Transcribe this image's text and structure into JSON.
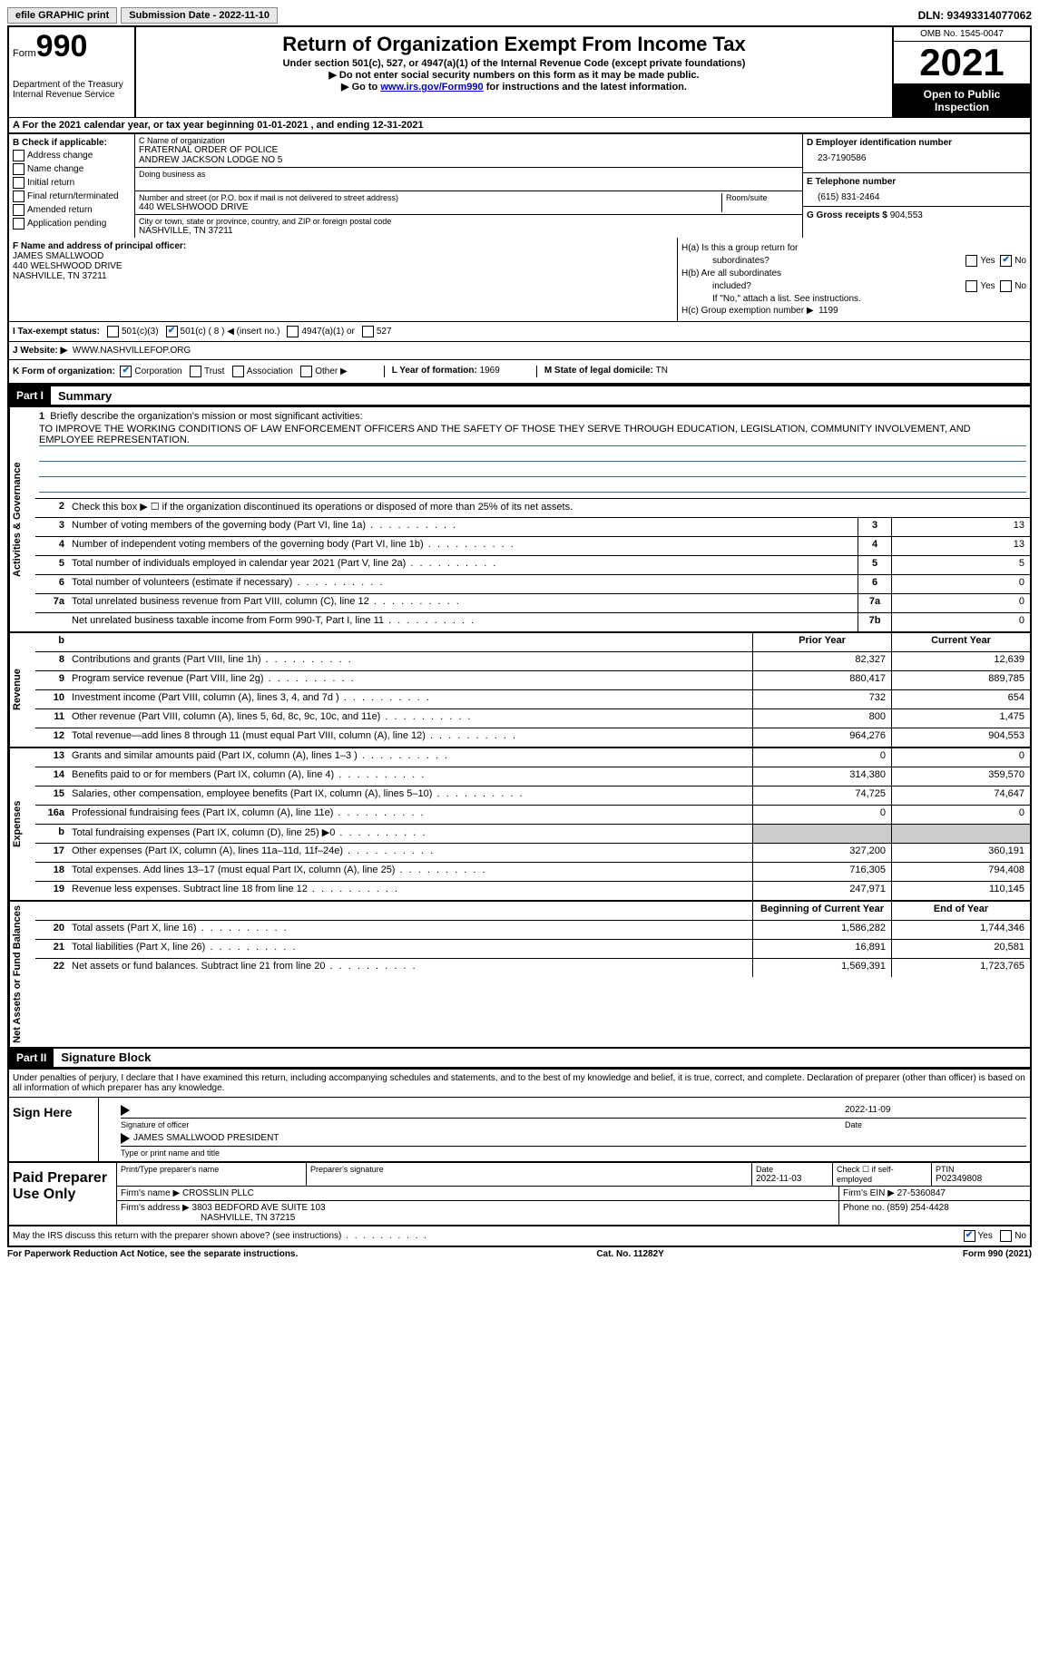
{
  "topbar": {
    "efile": "efile GRAPHIC print",
    "submission": "Submission Date - 2022-11-10",
    "dln": "DLN: 93493314077062"
  },
  "header": {
    "form_label": "Form",
    "form_number": "990",
    "dept": "Department of the Treasury",
    "irs": "Internal Revenue Service",
    "title": "Return of Organization Exempt From Income Tax",
    "sub1": "Under section 501(c), 527, or 4947(a)(1) of the Internal Revenue Code (except private foundations)",
    "sub2": "▶ Do not enter social security numbers on this form as it may be made public.",
    "sub3_pre": "▶ Go to ",
    "sub3_link": "www.irs.gov/Form990",
    "sub3_post": " for instructions and the latest information.",
    "omb": "OMB No. 1545-0047",
    "year": "2021",
    "open": "Open to Public Inspection"
  },
  "sectionA": "A  For the 2021 calendar year, or tax year beginning 01-01-2021    , and ending 12-31-2021",
  "colB": {
    "label": "B Check if applicable:",
    "addr": "Address change",
    "name": "Name change",
    "init": "Initial return",
    "final": "Final return/terminated",
    "amend": "Amended return",
    "app": "Application pending"
  },
  "colC": {
    "name_label": "C Name of organization",
    "name1": "FRATERNAL ORDER OF POLICE",
    "name2": "ANDREW JACKSON LODGE NO 5",
    "dba_label": "Doing business as",
    "addr_label": "Number and street (or P.O. box if mail is not delivered to street address)",
    "addr": "440 WELSHWOOD DRIVE",
    "room_label": "Room/suite",
    "city_label": "City or town, state or province, country, and ZIP or foreign postal code",
    "city": "NASHVILLE, TN  37211"
  },
  "colD": {
    "d_label": "D Employer identification number",
    "d_val": "23-7190586",
    "e_label": "E Telephone number",
    "e_val": "(615) 831-2464",
    "g_label": "G Gross receipts $ ",
    "g_val": "904,553"
  },
  "sectionF": {
    "label": "F  Name and address of principal officer:",
    "name": "JAMES SMALLWOOD",
    "addr1": "440 WELSHWOOD DRIVE",
    "addr2": "NASHVILLE, TN  37211"
  },
  "sectionH": {
    "ha1": "H(a)  Is this a group return for",
    "ha2": "subordinates?",
    "hb1": "H(b)  Are all subordinates",
    "hb2": "included?",
    "hb_note": "If \"No,\" attach a list. See instructions.",
    "hc": "H(c)  Group exemption number ▶",
    "hc_val": "1199",
    "yes": "Yes",
    "no": "No"
  },
  "rowI": {
    "label": "I   Tax-exempt status:",
    "c3": "501(c)(3)",
    "c": "501(c) ( 8 ) ◀ (insert no.)",
    "a1": "4947(a)(1) or",
    "s527": "527"
  },
  "rowJ": {
    "label": "J   Website: ▶",
    "val": "WWW.NASHVILLEFOP.ORG"
  },
  "rowK": {
    "label": "K Form of organization:",
    "corp": "Corporation",
    "trust": "Trust",
    "assoc": "Association",
    "other": "Other ▶",
    "l_label": "L Year of formation: ",
    "l_val": "1969",
    "m_label": "M State of legal domicile: ",
    "m_val": "TN"
  },
  "part1": {
    "header": "Part I",
    "title": "Summary"
  },
  "summary": {
    "line1_label": "Briefly describe the organization's mission or most significant activities:",
    "line1_text": "TO IMPROVE THE WORKING CONDITIONS OF LAW ENFORCEMENT OFFICERS AND THE SAFETY OF THOSE THEY SERVE THROUGH EDUCATION, LEGISLATION, COMMUNITY INVOLVEMENT, AND EMPLOYEE REPRESENTATION.",
    "line2": "Check this box ▶ ☐  if the organization discontinued its operations or disposed of more than 25% of its net assets.",
    "sec1_tab": "Activities & Governance",
    "sec2_tab": "Revenue",
    "sec3_tab": "Expenses",
    "sec4_tab": "Net Assets or Fund Balances",
    "prior": "Prior Year",
    "current": "Current Year",
    "begin": "Beginning of Current Year",
    "end": "End of Year",
    "rows_gov": [
      {
        "n": "3",
        "l": "Number of voting members of the governing body (Part VI, line 1a)",
        "box": "3",
        "v": "13"
      },
      {
        "n": "4",
        "l": "Number of independent voting members of the governing body (Part VI, line 1b)",
        "box": "4",
        "v": "13"
      },
      {
        "n": "5",
        "l": "Total number of individuals employed in calendar year 2021 (Part V, line 2a)",
        "box": "5",
        "v": "5"
      },
      {
        "n": "6",
        "l": "Total number of volunteers (estimate if necessary)",
        "box": "6",
        "v": "0"
      },
      {
        "n": "7a",
        "l": "Total unrelated business revenue from Part VIII, column (C), line 12",
        "box": "7a",
        "v": "0"
      },
      {
        "n": "",
        "l": "Net unrelated business taxable income from Form 990-T, Part I, line 11",
        "box": "7b",
        "v": "0"
      }
    ],
    "rows_rev": [
      {
        "n": "8",
        "l": "Contributions and grants (Part VIII, line 1h)",
        "p": "82,327",
        "c": "12,639"
      },
      {
        "n": "9",
        "l": "Program service revenue (Part VIII, line 2g)",
        "p": "880,417",
        "c": "889,785"
      },
      {
        "n": "10",
        "l": "Investment income (Part VIII, column (A), lines 3, 4, and 7d )",
        "p": "732",
        "c": "654"
      },
      {
        "n": "11",
        "l": "Other revenue (Part VIII, column (A), lines 5, 6d, 8c, 9c, 10c, and 11e)",
        "p": "800",
        "c": "1,475"
      },
      {
        "n": "12",
        "l": "Total revenue—add lines 8 through 11 (must equal Part VIII, column (A), line 12)",
        "p": "964,276",
        "c": "904,553"
      }
    ],
    "rows_exp": [
      {
        "n": "13",
        "l": "Grants and similar amounts paid (Part IX, column (A), lines 1–3 )",
        "p": "0",
        "c": "0"
      },
      {
        "n": "14",
        "l": "Benefits paid to or for members (Part IX, column (A), line 4)",
        "p": "314,380",
        "c": "359,570"
      },
      {
        "n": "15",
        "l": "Salaries, other compensation, employee benefits (Part IX, column (A), lines 5–10)",
        "p": "74,725",
        "c": "74,647"
      },
      {
        "n": "16a",
        "l": "Professional fundraising fees (Part IX, column (A), line 11e)",
        "p": "0",
        "c": "0"
      },
      {
        "n": "b",
        "l": "Total fundraising expenses (Part IX, column (D), line 25) ▶0",
        "p": "",
        "c": "",
        "shaded": true
      },
      {
        "n": "17",
        "l": "Other expenses (Part IX, column (A), lines 11a–11d, 11f–24e)",
        "p": "327,200",
        "c": "360,191"
      },
      {
        "n": "18",
        "l": "Total expenses. Add lines 13–17 (must equal Part IX, column (A), line 25)",
        "p": "716,305",
        "c": "794,408"
      },
      {
        "n": "19",
        "l": "Revenue less expenses. Subtract line 18 from line 12",
        "p": "247,971",
        "c": "110,145"
      }
    ],
    "rows_net": [
      {
        "n": "20",
        "l": "Total assets (Part X, line 16)",
        "p": "1,586,282",
        "c": "1,744,346"
      },
      {
        "n": "21",
        "l": "Total liabilities (Part X, line 26)",
        "p": "16,891",
        "c": "20,581"
      },
      {
        "n": "22",
        "l": "Net assets or fund balances. Subtract line 21 from line 20",
        "p": "1,569,391",
        "c": "1,723,765"
      }
    ]
  },
  "part2": {
    "header": "Part II",
    "title": "Signature Block",
    "penalty": "Under penalties of perjury, I declare that I have examined this return, including accompanying schedules and statements, and to the best of my knowledge and belief, it is true, correct, and complete. Declaration of preparer (other than officer) is based on all information of which preparer has any knowledge."
  },
  "sign": {
    "left": "Sign Here",
    "sig_label": "Signature of officer",
    "date": "2022-11-09",
    "date_label": "Date",
    "name": "JAMES SMALLWOOD  PRESIDENT",
    "name_label": "Type or print name and title"
  },
  "preparer": {
    "left": "Paid Preparer Use Only",
    "h1": "Print/Type preparer's name",
    "h2": "Preparer's signature",
    "h3_label": "Date",
    "h3": "2022-11-03",
    "h4_label": "Check ☐ if self-employed",
    "h5_label": "PTIN",
    "h5": "P02349808",
    "firm_label": "Firm's name    ▶",
    "firm": "CROSSLIN PLLC",
    "ein_label": "Firm's EIN ▶",
    "ein": "27-5360847",
    "addr_label": "Firm's address ▶",
    "addr1": "3803 BEDFORD AVE SUITE 103",
    "addr2": "NASHVILLE, TN  37215",
    "phone_label": "Phone no. ",
    "phone": "(859) 254-4428"
  },
  "discuss": {
    "text": "May the IRS discuss this return with the preparer shown above? (see instructions)",
    "yes": "Yes",
    "no": "No"
  },
  "footer": {
    "left": "For Paperwork Reduction Act Notice, see the separate instructions.",
    "mid": "Cat. No. 11282Y",
    "right": "Form 990 (2021)"
  }
}
